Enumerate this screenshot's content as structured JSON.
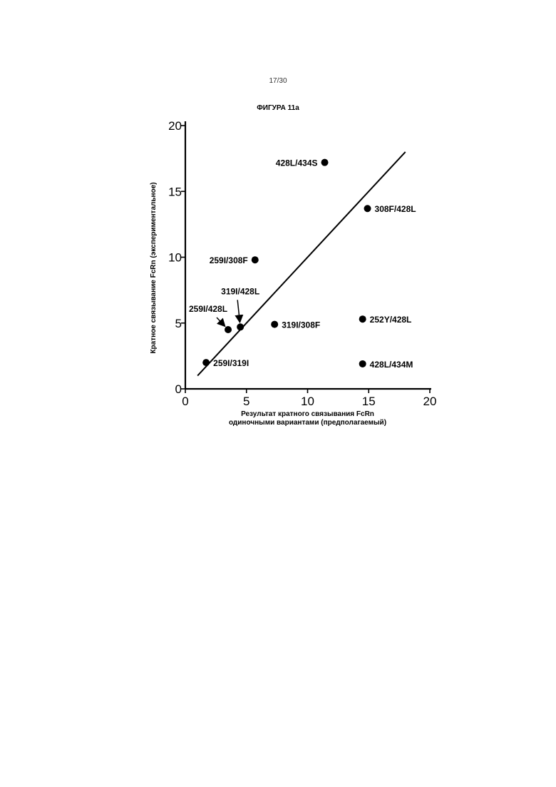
{
  "page": {
    "number": "17/30",
    "figure_title": "ФИГУРА 11а"
  },
  "chart_data": {
    "type": "scatter",
    "title": "ФИГУРА 11а",
    "xlabel_lines": [
      "Результат кратного связывания FcRn",
      "одиночными вариантами (предполагаемый)"
    ],
    "ylabel": "Кратное связывание FcRn (экспериментальное)",
    "xlim": [
      0,
      20
    ],
    "ylim": [
      0,
      20
    ],
    "xticks": [
      0,
      5,
      10,
      15,
      20
    ],
    "yticks": [
      0,
      5,
      10,
      15,
      20
    ],
    "grid": false,
    "points": [
      {
        "label": "428L/434S",
        "x": 11.4,
        "y": 17.2
      },
      {
        "label": "308F/428L",
        "x": 14.9,
        "y": 13.7
      },
      {
        "label": "259I/308F",
        "x": 5.7,
        "y": 9.8
      },
      {
        "label": "319I/428L",
        "x": 4.5,
        "y": 4.7
      },
      {
        "label": "259I/428L",
        "x": 3.5,
        "y": 4.5
      },
      {
        "label": "319I/308F",
        "x": 7.3,
        "y": 4.9
      },
      {
        "label": "252Y/428L",
        "x": 14.5,
        "y": 5.3
      },
      {
        "label": "259I/319I",
        "x": 1.7,
        "y": 2.0
      },
      {
        "label": "428L/434M",
        "x": 14.5,
        "y": 1.9
      }
    ],
    "trend_line": {
      "from": [
        1.0,
        1.0
      ],
      "to": [
        18.0,
        18.0
      ]
    }
  }
}
